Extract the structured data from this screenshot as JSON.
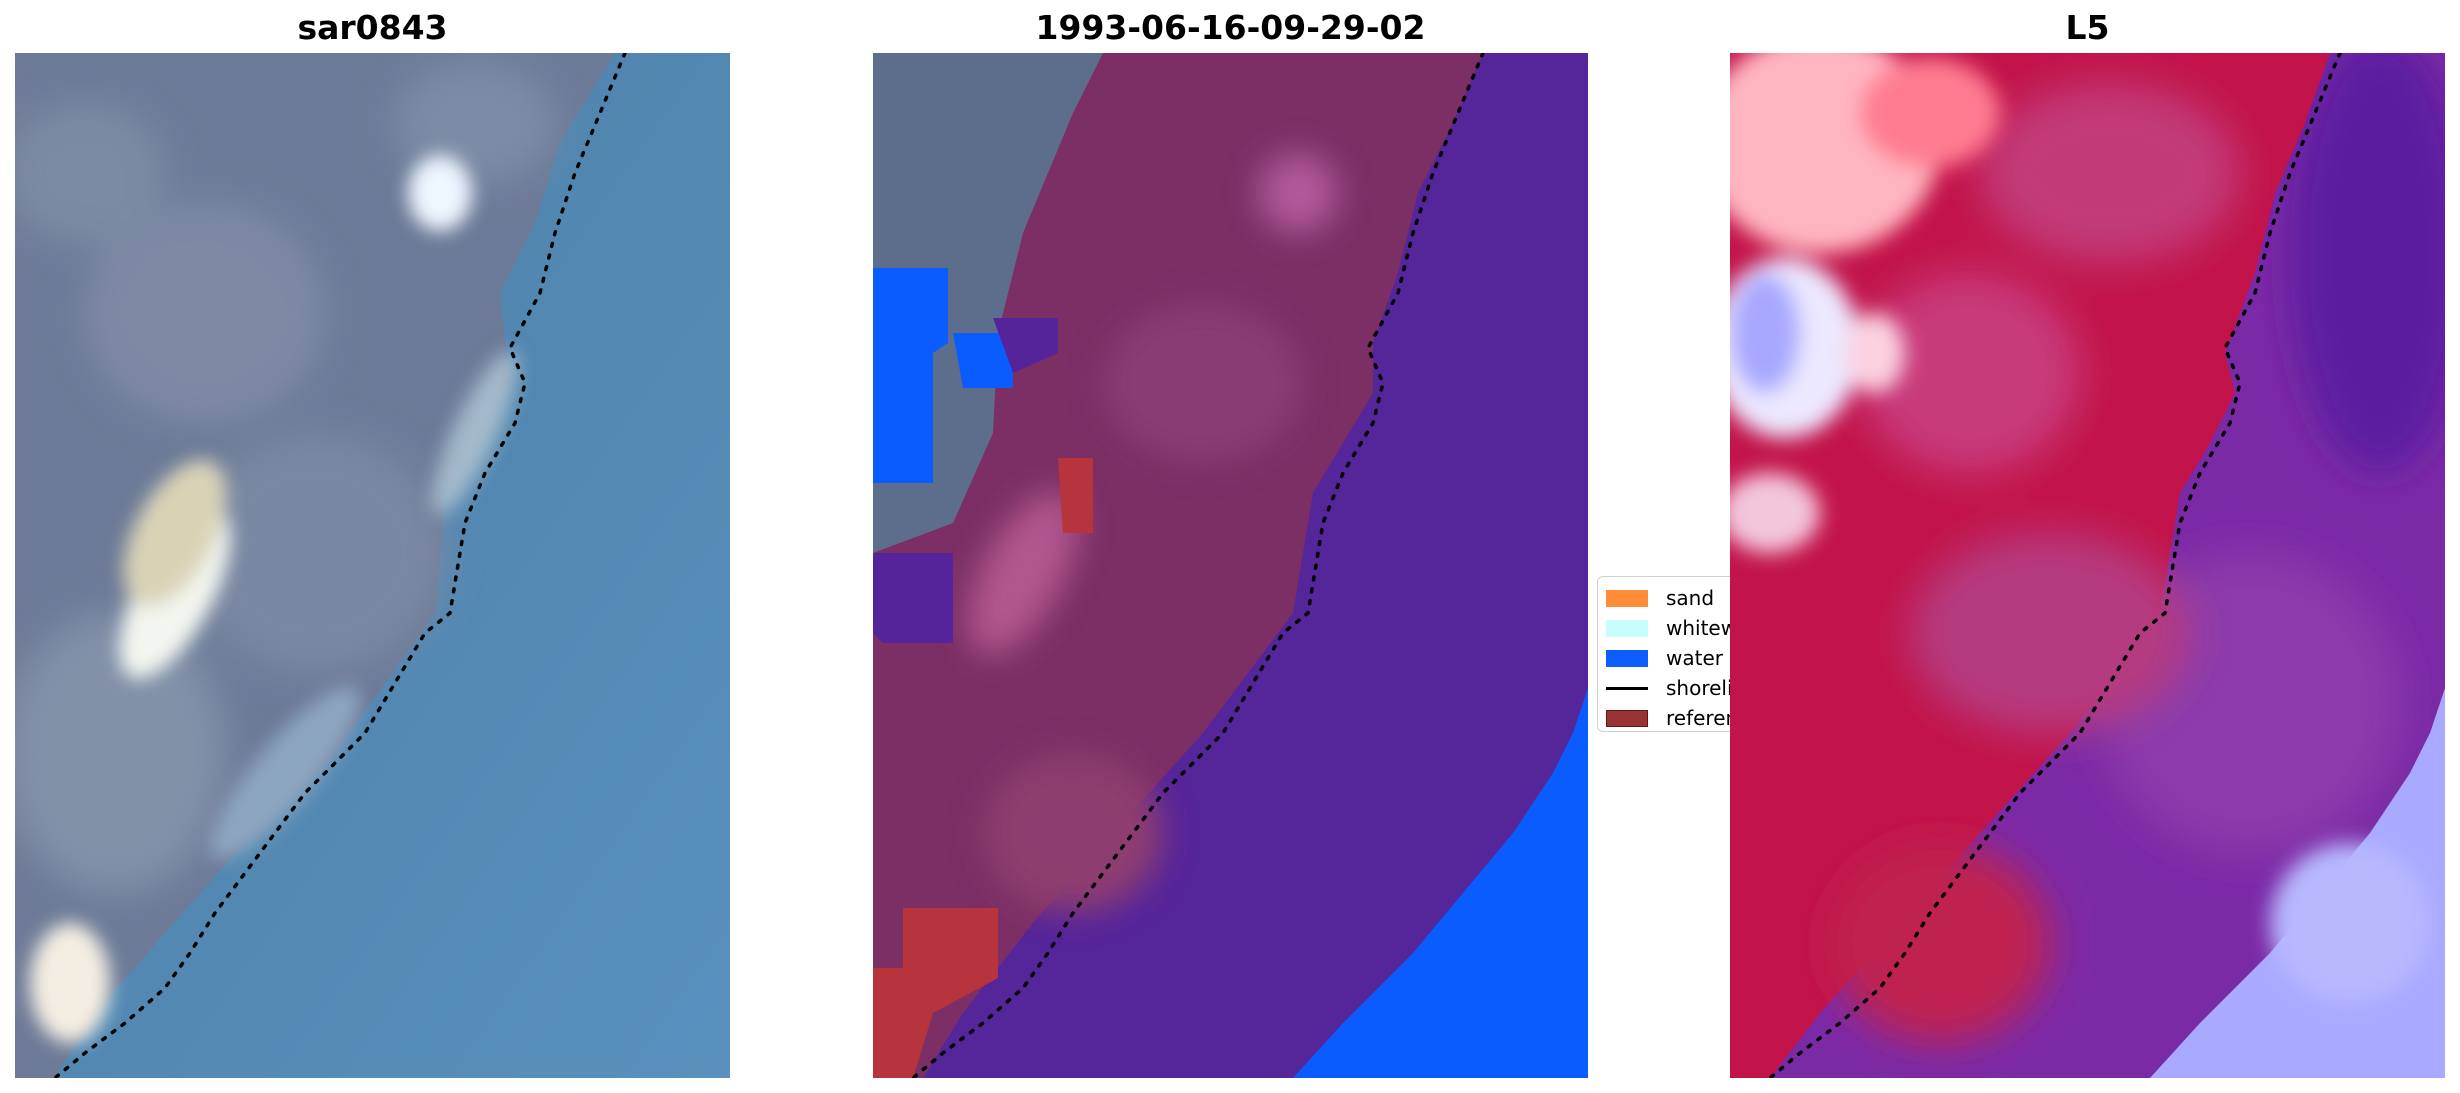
{
  "panels": [
    {
      "title": "sar0843"
    },
    {
      "title": "1993-06-16-09-29-02"
    },
    {
      "title": "L5"
    }
  ],
  "legend": {
    "items": [
      {
        "label": "sand",
        "color": "#ff8c39",
        "kind": "patch"
      },
      {
        "label": "whitewater",
        "color": "#c8fdfd",
        "kind": "patch"
      },
      {
        "label": "water",
        "color": "#0d5dfd",
        "kind": "patch"
      },
      {
        "label": "shoreline",
        "color": "#000000",
        "kind": "line"
      },
      {
        "label": "reference shoreline buffer",
        "color": "#9a3333",
        "kind": "patch"
      }
    ]
  },
  "colors": {
    "rgb_land": "#6f7f9a",
    "rgb_water": "#4d86b0",
    "class_land": "#7a2f64",
    "class_sea": "#56249a",
    "class_water": "#0b5cff",
    "class_buffer": "#b8343c",
    "index_red": "#c21347",
    "index_purple": "#7a2aa6",
    "index_blue": "#a8aaff"
  }
}
